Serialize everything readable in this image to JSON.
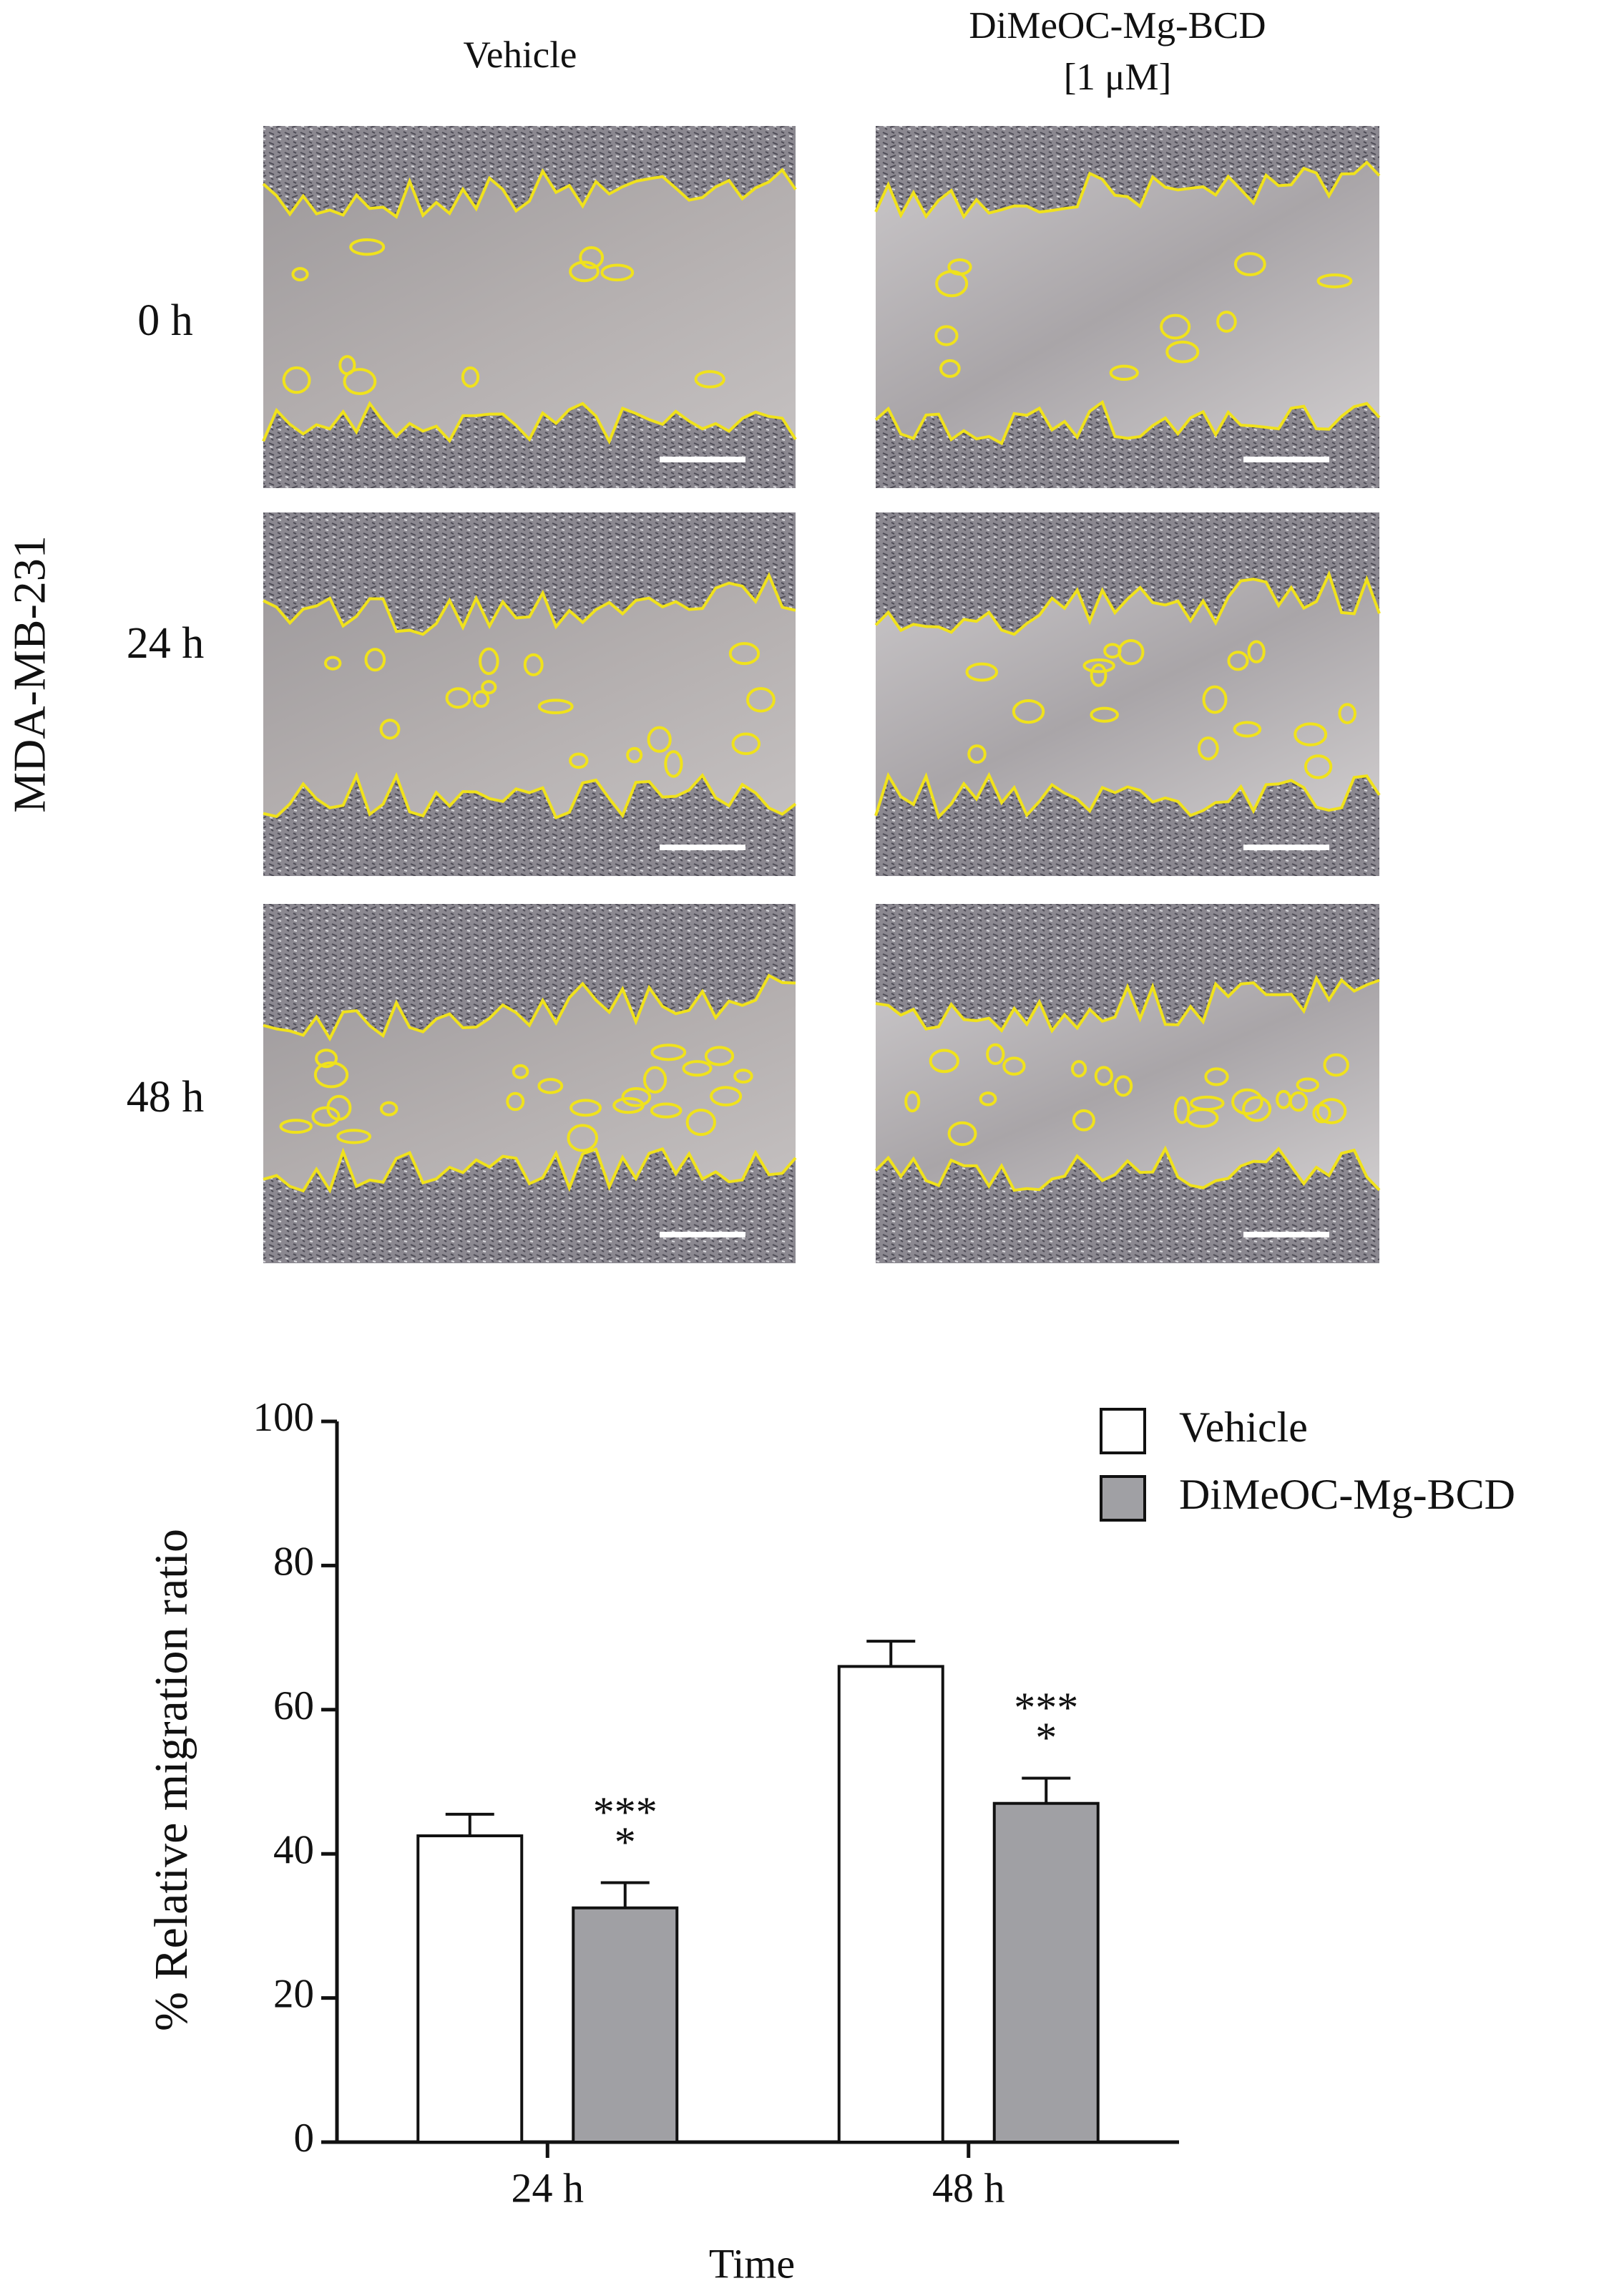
{
  "panel": {
    "columns": [
      "Vehicle",
      "DiMeOC-Mg-BCD",
      "[1 μM]"
    ],
    "rows": [
      "0 h",
      "24 h",
      "48 h"
    ],
    "cell_line": "MDA-MB-231"
  },
  "chart_data": {
    "type": "bar",
    "ylabel": "% Relative migration ratio",
    "xlabel": "Time",
    "categories": [
      "24 h",
      "48 h"
    ],
    "series": [
      {
        "name": "Vehicle",
        "color": "#ffffff",
        "values": [
          42.5,
          66
        ],
        "errors": [
          3,
          3.5
        ]
      },
      {
        "name": "DiMeOC-Mg-BCD",
        "color": "#a0a0a4",
        "values": [
          32.5,
          47
        ],
        "errors": [
          3.5,
          3.5
        ]
      }
    ],
    "significance": [
      [
        "***",
        "*"
      ],
      [
        "***",
        "*"
      ]
    ],
    "ylim": [
      0,
      100
    ],
    "yticks": [
      0,
      20,
      40,
      60,
      80,
      100
    ],
    "legend": "top-right"
  }
}
